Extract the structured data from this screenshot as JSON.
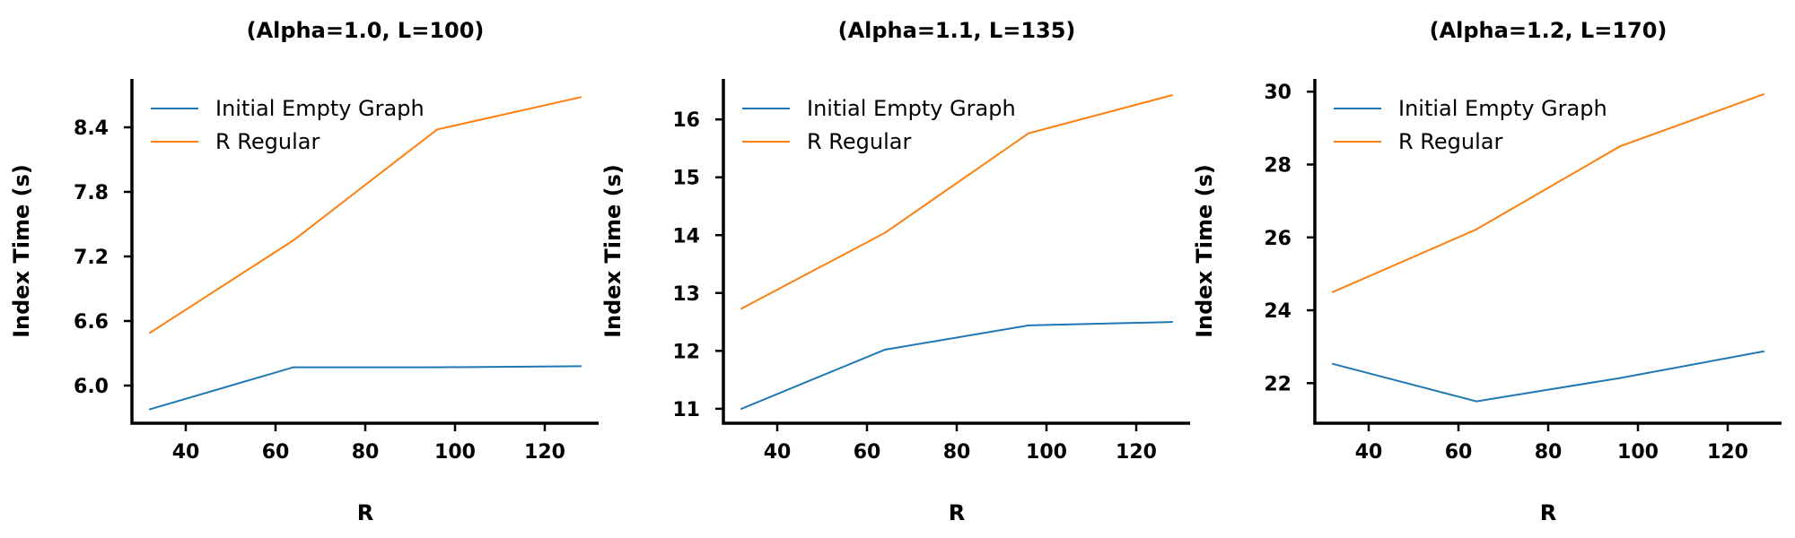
{
  "chart_data": [
    {
      "type": "line",
      "title": "(Alpha=1.0, L=100)",
      "xlabel": "R",
      "ylabel": "Index Time (s)",
      "x": [
        32,
        64,
        96,
        128
      ],
      "xticks": [
        40,
        60,
        80,
        100,
        120
      ],
      "yticks": [
        "6.0",
        "6.6",
        "7.2",
        "7.8",
        "8.4"
      ],
      "xlim": [
        28,
        132
      ],
      "ylim": [
        5.65,
        8.85
      ],
      "series": [
        {
          "name": "Initial Empty Graph",
          "color": "#1f77b4",
          "values": [
            5.78,
            6.17,
            6.17,
            6.18
          ]
        },
        {
          "name": "R Regular",
          "color": "#ff7f0e",
          "values": [
            6.49,
            7.35,
            8.38,
            8.68
          ]
        }
      ],
      "legend": "top-left",
      "grid": false
    },
    {
      "type": "line",
      "title": "(Alpha=1.1, L=135)",
      "xlabel": "R",
      "ylabel": "Index Time (s)",
      "x": [
        32,
        64,
        96,
        128
      ],
      "xticks": [
        40,
        60,
        80,
        100,
        120
      ],
      "yticks": [
        "11",
        "12",
        "13",
        "14",
        "15",
        "16"
      ],
      "xlim": [
        28,
        132
      ],
      "ylim": [
        10.75,
        16.7
      ],
      "series": [
        {
          "name": "Initial Empty Graph",
          "color": "#1f77b4",
          "values": [
            11.0,
            12.02,
            12.44,
            12.5
          ]
        },
        {
          "name": "R Regular",
          "color": "#ff7f0e",
          "values": [
            12.73,
            14.04,
            15.76,
            16.42
          ]
        }
      ],
      "legend": "top-left",
      "grid": false
    },
    {
      "type": "line",
      "title": "(Alpha=1.2, L=170)",
      "xlabel": "R",
      "ylabel": "Index Time (s)",
      "x": [
        32,
        64,
        96,
        128
      ],
      "xticks": [
        40,
        60,
        80,
        100,
        120
      ],
      "yticks": [
        "22",
        "24",
        "26",
        "28",
        "30"
      ],
      "xlim": [
        28,
        132
      ],
      "ylim": [
        20.9,
        30.35
      ],
      "series": [
        {
          "name": "Initial Empty Graph",
          "color": "#1f77b4",
          "values": [
            22.53,
            21.5,
            22.14,
            22.87
          ]
        },
        {
          "name": "R Regular",
          "color": "#ff7f0e",
          "values": [
            24.5,
            26.22,
            28.5,
            29.93
          ]
        }
      ],
      "legend": "top-left",
      "grid": false
    }
  ]
}
